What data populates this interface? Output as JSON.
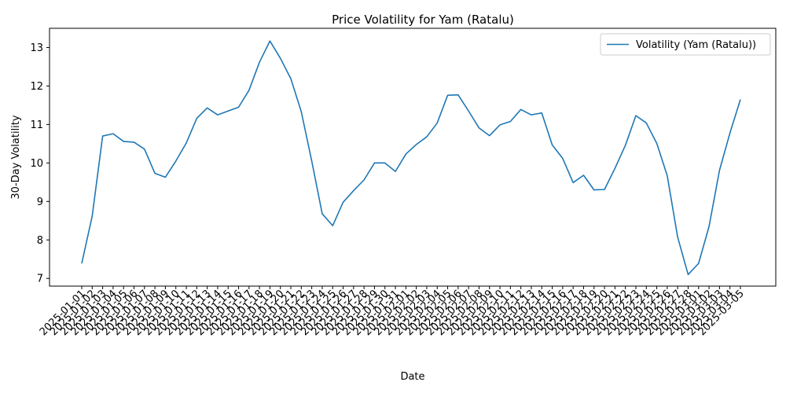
{
  "chart_data": {
    "type": "line",
    "title": "Price Volatility for Yam (Ratalu)",
    "xlabel": "Date",
    "ylabel": "30-Day Volatility",
    "ylim": [
      6.8,
      13.5
    ],
    "yticks": [
      7,
      8,
      9,
      10,
      11,
      12,
      13
    ],
    "grid": false,
    "legend_position": "top-right",
    "x": [
      "2025-01-01",
      "2025-01-02",
      "2025-01-03",
      "2025-01-04",
      "2025-01-05",
      "2025-01-06",
      "2025-01-07",
      "2025-01-08",
      "2025-01-09",
      "2025-01-10",
      "2025-01-11",
      "2025-01-12",
      "2025-01-13",
      "2025-01-14",
      "2025-01-15",
      "2025-01-16",
      "2025-01-17",
      "2025-01-18",
      "2025-01-19",
      "2025-01-20",
      "2025-01-21",
      "2025-01-22",
      "2025-01-23",
      "2025-01-24",
      "2025-01-25",
      "2025-01-26",
      "2025-01-27",
      "2025-01-28",
      "2025-01-29",
      "2025-01-30",
      "2025-01-31",
      "2025-02-01",
      "2025-02-02",
      "2025-02-03",
      "2025-02-04",
      "2025-02-05",
      "2025-02-06",
      "2025-02-07",
      "2025-02-08",
      "2025-02-09",
      "2025-02-10",
      "2025-02-11",
      "2025-02-12",
      "2025-02-13",
      "2025-02-14",
      "2025-02-15",
      "2025-02-16",
      "2025-02-17",
      "2025-02-18",
      "2025-02-19",
      "2025-02-20",
      "2025-02-21",
      "2025-02-22",
      "2025-02-23",
      "2025-02-24",
      "2025-02-25",
      "2025-02-26",
      "2025-02-27",
      "2025-02-28",
      "2025-03-01",
      "2025-03-02",
      "2025-03-03",
      "2025-03-04",
      "2025-03-05"
    ],
    "series": [
      {
        "name": "Volatility (Yam (Ratalu))",
        "color": "#1f77b4",
        "values": [
          7.39,
          8.62,
          10.7,
          10.76,
          10.56,
          10.54,
          10.36,
          9.73,
          9.63,
          10.05,
          10.52,
          11.16,
          11.43,
          11.25,
          11.35,
          11.45,
          11.89,
          12.62,
          13.17,
          12.72,
          12.19,
          11.33,
          10.05,
          8.68,
          8.37,
          8.98,
          9.28,
          9.56,
          10.0,
          10.0,
          9.78,
          10.23,
          10.48,
          10.68,
          11.04,
          11.76,
          11.77,
          11.35,
          10.91,
          10.71,
          10.99,
          11.08,
          11.39,
          11.25,
          11.3,
          10.47,
          10.12,
          9.49,
          9.68,
          9.3,
          9.31,
          9.86,
          10.46,
          11.23,
          11.04,
          10.51,
          9.67,
          8.07,
          7.1,
          7.39,
          8.35,
          9.81,
          10.78,
          11.65
        ]
      }
    ]
  }
}
